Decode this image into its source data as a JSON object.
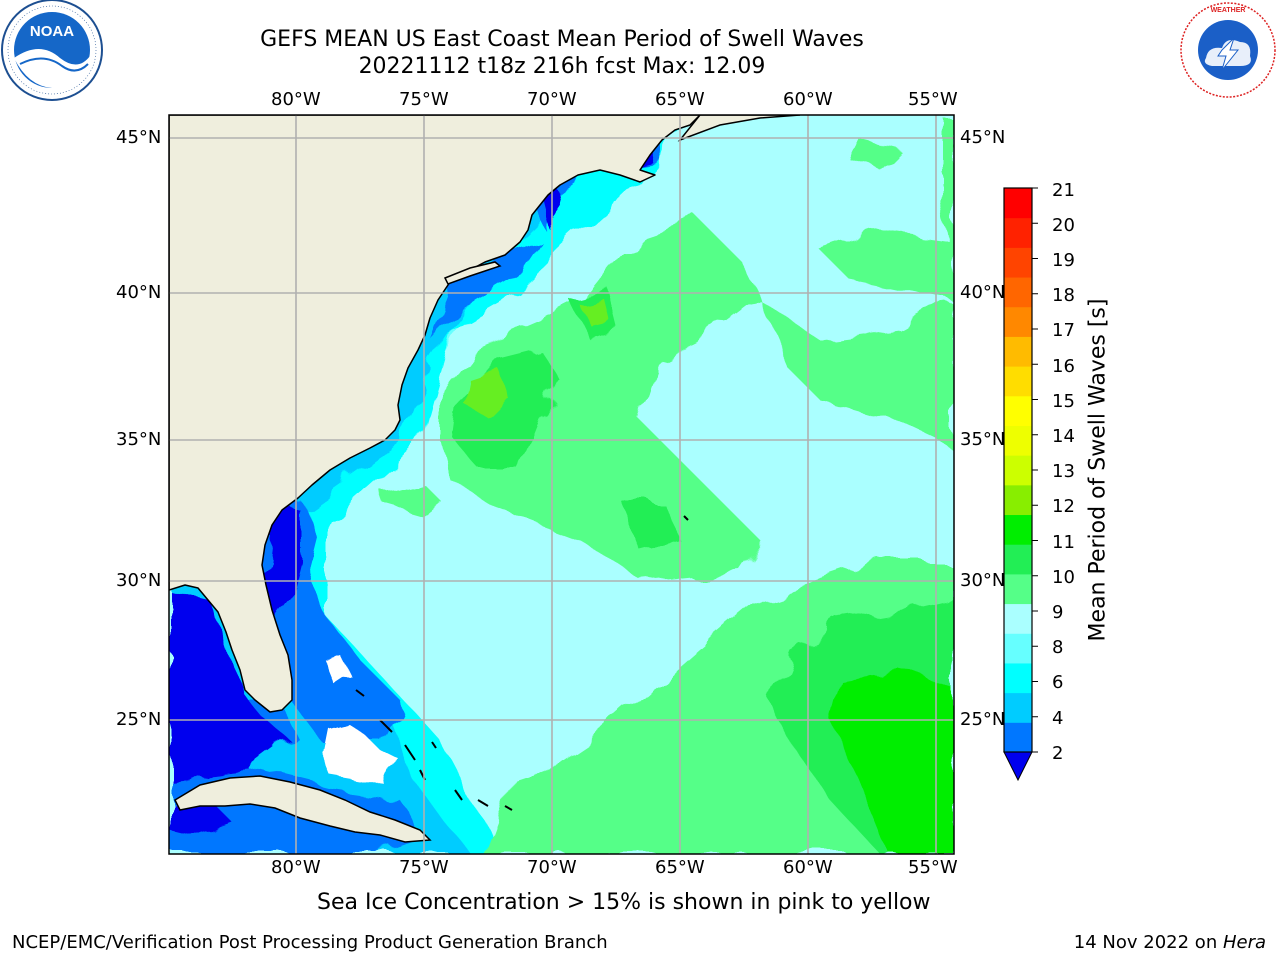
{
  "header": {
    "title_line1": "GEFS MEAN US East Coast Mean Period of Swell Waves",
    "title_line2": "20221112 t18z 216h fcst   Max: 12.09"
  },
  "logos": {
    "left": {
      "icon": "noaa-logo",
      "text": "NOAA",
      "ring_text": "NATIONAL OCEANIC AND ATMOSPHERIC ADMINISTRATION · U.S. DEPARTMENT OF COMMERCE"
    },
    "right": {
      "icon": "nws-logo",
      "ring_text": "NATIONAL WEATHER SERVICE"
    }
  },
  "map": {
    "lon_labels": [
      "80°W",
      "75°W",
      "70°W",
      "65°W",
      "60°W",
      "55°W"
    ],
    "lat_labels": [
      "45°N",
      "40°N",
      "35°N",
      "30°N",
      "25°N"
    ],
    "colors": {
      "land": "#efeedd",
      "grid": "#b0b0b0",
      "coast": "#000000"
    }
  },
  "colorbar": {
    "label": "Mean Period of Swell Waves [s]",
    "ticks": [
      "21",
      "20",
      "19",
      "18",
      "17",
      "16",
      "15",
      "14",
      "13",
      "12",
      "11",
      "10",
      "9",
      "8",
      "6",
      "4",
      "2"
    ],
    "colors_bottom_to_top": [
      "#0077ff",
      "#00ccff",
      "#00ffff",
      "#66ffff",
      "#aaffff",
      "#55ff88",
      "#22ee55",
      "#00ee00",
      "#88ee00",
      "#ccff00",
      "#eeff00",
      "#ffff00",
      "#ffdd00",
      "#ffbb00",
      "#ff8800",
      "#ff6600",
      "#ff4400",
      "#ff2200",
      "#ff0000"
    ],
    "under_color": "#0000ee"
  },
  "footnote": "Sea Ice Concentration > 15% is shown in pink to yellow",
  "footer": {
    "left": "NCEP/EMC/Verification Post Processing Product Generation Branch",
    "right_date": "14 Nov 2022 on ",
    "right_host": "Hera"
  }
}
